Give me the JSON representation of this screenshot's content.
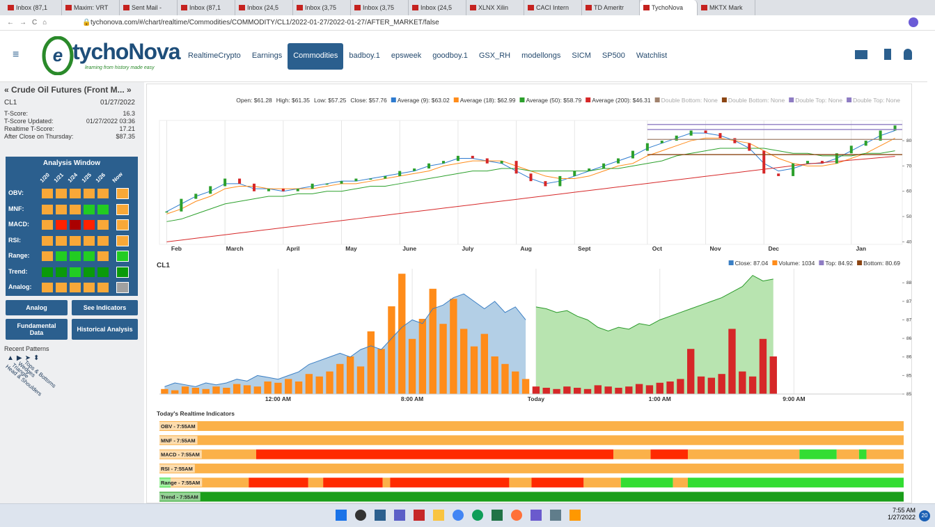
{
  "browser": {
    "tabs": [
      "Inbox (87,1",
      "Maxim: VRT",
      "Sent Mail -",
      "Inbox (87,1",
      "Inbox (24,5",
      "Inbox (3,75",
      "Inbox (3,75",
      "Inbox (24,5",
      "XLNX Xilin",
      "CACI Intern",
      "TD Ameritr",
      "TychoNova",
      "MKTX Mark"
    ],
    "active_tab": 11,
    "url": "tychonova.com/#/chart/realtime/Commodities/COMMODITY/CL1/2022-01-27/2022-01-27/AFTER_MARKET/false"
  },
  "header": {
    "logo": "tychoNova",
    "tagline": "learning from history made easy",
    "nav": [
      "RealtimeCrypto",
      "Earnings",
      "Commodities",
      "badboy.1",
      "epsweek",
      "goodboy.1",
      "GSX_RH",
      "modellongs",
      "SICM",
      "SP500",
      "Watchlist"
    ],
    "active_nav": 2
  },
  "sidebar": {
    "title": "« Crude Oil Futures (Front M... »",
    "symbol": "CL1",
    "date": "01/27/2022",
    "stats": [
      [
        "T-Score:",
        "16.3"
      ],
      [
        "T-Score Updated:",
        "01/27/2022 03:36"
      ],
      [
        "Realtime T-Score:",
        "17.21"
      ],
      [
        "After Close on Thursday:",
        "$87.35"
      ]
    ],
    "analysis_window": {
      "title": "Analysis Window",
      "columns": [
        "1/20",
        "1/21",
        "1/24",
        "1/25",
        "1/26",
        "Now"
      ],
      "rows": [
        {
          "label": "OBV:",
          "colors": [
            "#f8a838",
            "#f8a838",
            "#f8a838",
            "#f8a838",
            "#f8a838",
            "#f8a838"
          ]
        },
        {
          "label": "MNF:",
          "colors": [
            "#f8a838",
            "#f8a838",
            "#f8a838",
            "#22cc22",
            "#22cc22",
            "#f8a838"
          ]
        },
        {
          "label": "MACD:",
          "colors": [
            "#f8a838",
            "#ff2200",
            "#aa0000",
            "#ff2200",
            "#f8a838",
            "#f8a838"
          ]
        },
        {
          "label": "RSI:",
          "colors": [
            "#f8a838",
            "#f8a838",
            "#f8a838",
            "#f8a838",
            "#f8a838",
            "#f8a838"
          ]
        },
        {
          "label": "Range:",
          "colors": [
            "#f8a838",
            "#22cc22",
            "#22cc22",
            "#22cc22",
            "#f8a838",
            "#22cc22"
          ]
        },
        {
          "label": "Trend:",
          "colors": [
            "#0a9a0a",
            "#0a9a0a",
            "#22cc22",
            "#0a9a0a",
            "#0a9a0a",
            "#0a9a0a"
          ]
        },
        {
          "label": "Analog:",
          "colors": [
            "#f8a838",
            "#f8a838",
            "#f8a838",
            "#f8a838",
            "#f8a838",
            "#a0a0a0"
          ]
        }
      ]
    },
    "buttons": [
      "Analog",
      "See Indicators",
      "Fundamental Data",
      "Historical Analysis"
    ],
    "recent_patterns": {
      "title": "Recent Patterns",
      "items": [
        "Head & Shoulders",
        "Triangle",
        "Wedges",
        "Tops & Bottoms"
      ]
    }
  },
  "chart_data": [
    {
      "type": "line",
      "legend_text": [
        "Open: $61.28",
        "High: $61.35",
        "Low: $57.25",
        "Close: $57.76"
      ],
      "categories": [
        "Feb",
        null,
        null,
        null,
        "March",
        null,
        null,
        null,
        "April",
        null,
        null,
        null,
        "May",
        null,
        null,
        null,
        "June",
        null,
        null,
        null,
        "July",
        null,
        null,
        null,
        "Aug",
        null,
        null,
        null,
        "Sept",
        null,
        null,
        null,
        null,
        "Oct",
        null,
        null,
        null,
        "Nov",
        null,
        null,
        null,
        "Dec",
        null,
        null,
        null,
        null,
        null,
        "Jan",
        null,
        null,
        null
      ],
      "values": [
        52,
        57,
        59,
        62,
        65,
        63,
        60,
        61,
        60,
        61,
        63,
        63,
        64,
        65,
        65,
        66,
        68,
        69,
        71,
        72,
        74,
        73,
        71,
        72,
        67,
        64,
        62,
        66,
        68,
        69,
        71,
        73,
        76,
        79,
        80,
        82,
        84,
        83,
        81,
        79,
        76,
        67,
        66,
        71,
        72,
        71,
        75,
        78,
        80,
        84,
        86
      ],
      "color": "#2ca02c",
      "series": [
        {
          "name": "Average (9): $63.02",
          "color": "#2e7bcf",
          "values": [
            52,
            55,
            58,
            60,
            63,
            63,
            61,
            61,
            60,
            61,
            62,
            63,
            64,
            64,
            65,
            66,
            67,
            68,
            70,
            71,
            73,
            73,
            72,
            71,
            68,
            65,
            63,
            64,
            66,
            68,
            70,
            72,
            74,
            77,
            79,
            81,
            83,
            83,
            82,
            80,
            77,
            71,
            68,
            69,
            71,
            71,
            73,
            76,
            79,
            82,
            84
          ]
        },
        {
          "name": "Average (18): $62.99",
          "color": "#ff8c1a",
          "values": [
            51,
            53,
            56,
            58,
            61,
            62,
            62,
            61,
            61,
            61,
            61,
            62,
            63,
            63,
            64,
            65,
            66,
            67,
            68,
            70,
            71,
            72,
            72,
            72,
            70,
            68,
            66,
            65,
            65,
            66,
            68,
            70,
            71,
            74,
            76,
            78,
            80,
            81,
            81,
            80,
            79,
            76,
            73,
            71,
            70,
            70,
            71,
            73,
            75,
            78,
            81
          ]
        },
        {
          "name": "Average (50): $58.79",
          "color": "#2ca02c",
          "values": [
            48,
            49,
            51,
            53,
            55,
            56,
            57,
            58,
            58,
            59,
            59,
            60,
            60,
            61,
            62,
            62,
            63,
            64,
            65,
            66,
            67,
            68,
            68,
            69,
            69,
            68,
            68,
            68,
            68,
            68,
            69,
            69,
            70,
            71,
            72,
            74,
            75,
            76,
            77,
            77,
            77,
            77,
            76,
            75,
            75,
            74,
            74,
            74,
            75,
            75,
            76
          ]
        },
        {
          "name": "Average (200): $46.31",
          "color": "#d62728",
          "values": [
            40,
            40.7,
            41.4,
            42.1,
            42.8,
            43.5,
            44.2,
            44.9,
            45.6,
            46.3,
            47,
            47.7,
            48.4,
            49.1,
            49.8,
            50.5,
            51.2,
            51.9,
            52.6,
            53.3,
            54,
            54.7,
            55.4,
            56.1,
            56.8,
            57.5,
            58.2,
            58.9,
            59.6,
            60.3,
            61,
            61.7,
            62.4,
            63.1,
            63.8,
            64.5,
            65.2,
            65.9,
            66.6,
            67.3,
            68,
            68.7,
            69.4,
            70.1,
            70.8,
            71.3,
            71.8,
            72.3,
            72.8,
            73.3,
            73.8
          ]
        }
      ],
      "levels": [
        {
          "name": "Double Bottom: None",
          "color": "#a0826d",
          "value": 80.5,
          "from": 33
        },
        {
          "name": "Double Bottom: None",
          "color": "#8b4513",
          "value": 74.5,
          "from": 33
        },
        {
          "name": "Double Top: None",
          "color": "#8e7cc3",
          "value": 86.4,
          "from": 33
        },
        {
          "name": "Double Top: None",
          "color": "#8e7cc3",
          "value": 84.4,
          "from": 33
        }
      ],
      "ylim": [
        39,
        88
      ],
      "yticks": [
        40,
        50,
        60,
        70,
        80
      ],
      "grid": true
    },
    {
      "type": "area",
      "title": "CL1",
      "categories": [
        null,
        null,
        null,
        null,
        null,
        null,
        null,
        null,
        null,
        null,
        null,
        "12:00 AM",
        null,
        null,
        null,
        null,
        null,
        null,
        null,
        null,
        null,
        null,
        null,
        null,
        "8:00 AM",
        null,
        null,
        null,
        null,
        null,
        null,
        null,
        null,
        null,
        null,
        null,
        "Today",
        null,
        null,
        null,
        null,
        null,
        null,
        null,
        null,
        null,
        null,
        null,
        "1:00 AM",
        null,
        null,
        null,
        null,
        null,
        null,
        null,
        null,
        null,
        null,
        null,
        null,
        "9:00 AM",
        null,
        null,
        null,
        null,
        null,
        null,
        null,
        null,
        null,
        null
      ],
      "session_starts": [
        0,
        36
      ],
      "series": [
        {
          "name": "Close: 87.04",
          "legend_color": "#3b7fc4",
          "fills": [
            "#b3cfe6",
            "#b8e4b0"
          ],
          "lines": [
            "#3b7fc4",
            "#2a9a2a"
          ],
          "values": [
            85.2,
            85.3,
            85.25,
            85.2,
            85.3,
            85.25,
            85.3,
            85.4,
            85.35,
            85.5,
            85.45,
            85.4,
            85.5,
            85.6,
            85.8,
            85.9,
            86.0,
            86.1,
            86.0,
            86.2,
            86.3,
            86.2,
            86.5,
            86.8,
            87.0,
            86.9,
            87.3,
            87.4,
            87.6,
            87.7,
            87.5,
            87.3,
            87.5,
            87.2,
            87.35,
            87.0,
            87.35,
            87.3,
            87.2,
            87.25,
            87.1,
            87.0,
            86.8,
            86.7,
            86.8,
            86.75,
            86.9,
            86.85,
            87.0,
            87.1,
            87.2,
            87.3,
            87.4,
            87.5,
            87.6,
            87.75,
            87.9,
            88.2,
            88.05,
            88.1,
            null,
            null,
            null,
            null,
            null,
            null,
            null,
            null,
            null,
            null,
            null,
            null
          ]
        },
        {
          "name": "Volume: 1034",
          "axis": "y2",
          "legend_color": "#ff8c1a",
          "fills": [
            "#ff8c1a",
            "#d62728"
          ],
          "values": [
            200,
            150,
            300,
            250,
            200,
            300,
            250,
            400,
            350,
            300,
            500,
            450,
            600,
            500,
            800,
            700,
            900,
            1200,
            1500,
            1100,
            2500,
            1800,
            3500,
            4800,
            2200,
            3000,
            4200,
            2800,
            3800,
            2600,
            1900,
            2400,
            1500,
            1200,
            900,
            600,
            300,
            250,
            200,
            300,
            250,
            200,
            350,
            300,
            250,
            300,
            400,
            350,
            450,
            500,
            600,
            1800,
            700,
            650,
            800,
            2600,
            900,
            700,
            2200,
            1500,
            null,
            null,
            null,
            null,
            null,
            null,
            null,
            null,
            null,
            null,
            null,
            null
          ]
        }
      ],
      "legend_extra": [
        {
          "name": "Top: 84.92",
          "color": "#8e7cc3"
        },
        {
          "name": "Bottom: 80.69",
          "color": "#8b4513"
        }
      ],
      "ylim": [
        85,
        88.38
      ],
      "yticks": [
        85,
        85.5,
        86,
        86.5,
        87,
        87.5,
        88
      ],
      "y2lim": [
        0,
        5000
      ],
      "grid": true
    }
  ],
  "indicators": {
    "title": "Today's Realtime Indicators",
    "rows": [
      {
        "label": "OBV - 7:55AM",
        "segments": [
          {
            "from": 0,
            "to": 100,
            "color": "#fbb149"
          }
        ]
      },
      {
        "label": "MNF - 7:55AM",
        "segments": [
          {
            "from": 0,
            "to": 100,
            "color": "#fbb149"
          }
        ]
      },
      {
        "label": "MACD - 7:55AM",
        "segments": [
          {
            "from": 0,
            "to": 13,
            "color": "#fbb149"
          },
          {
            "from": 13,
            "to": 61,
            "color": "#ff2a00"
          },
          {
            "from": 61,
            "to": 66,
            "color": "#fbb149"
          },
          {
            "from": 66,
            "to": 71,
            "color": "#ff2a00"
          },
          {
            "from": 71,
            "to": 86,
            "color": "#fbb149"
          },
          {
            "from": 86,
            "to": 91,
            "color": "#33dd33"
          },
          {
            "from": 91,
            "to": 94,
            "color": "#fbb149"
          },
          {
            "from": 94,
            "to": 95,
            "color": "#33dd33"
          },
          {
            "from": 95,
            "to": 100,
            "color": "#fbb149"
          }
        ]
      },
      {
        "label": "RSI - 7:55AM",
        "segments": [
          {
            "from": 0,
            "to": 100,
            "color": "#fbb149"
          }
        ]
      },
      {
        "label": "Range - 7:55AM",
        "segments": [
          {
            "from": 0,
            "to": 1.5,
            "color": "#33dd33"
          },
          {
            "from": 1.5,
            "to": 12,
            "color": "#fbb149"
          },
          {
            "from": 12,
            "to": 20,
            "color": "#ff2a00"
          },
          {
            "from": 20,
            "to": 22,
            "color": "#fbb149"
          },
          {
            "from": 22,
            "to": 30,
            "color": "#ff2a00"
          },
          {
            "from": 30,
            "to": 31,
            "color": "#fbb149"
          },
          {
            "from": 31,
            "to": 47,
            "color": "#ff2a00"
          },
          {
            "from": 47,
            "to": 50,
            "color": "#fbb149"
          },
          {
            "from": 50,
            "to": 57,
            "color": "#ff2a00"
          },
          {
            "from": 57,
            "to": 62,
            "color": "#fbb149"
          },
          {
            "from": 62,
            "to": 69,
            "color": "#33dd33"
          },
          {
            "from": 69,
            "to": 71,
            "color": "#fbb149"
          },
          {
            "from": 71,
            "to": 100,
            "color": "#33dd33"
          }
        ]
      },
      {
        "label": "Trend - 7:55AM",
        "segments": [
          {
            "from": 0,
            "to": 100,
            "color": "#1a9e1a"
          }
        ]
      }
    ]
  },
  "taskbar": {
    "time": "7:55 AM",
    "date": "1/27/2022",
    "badge": "20"
  }
}
